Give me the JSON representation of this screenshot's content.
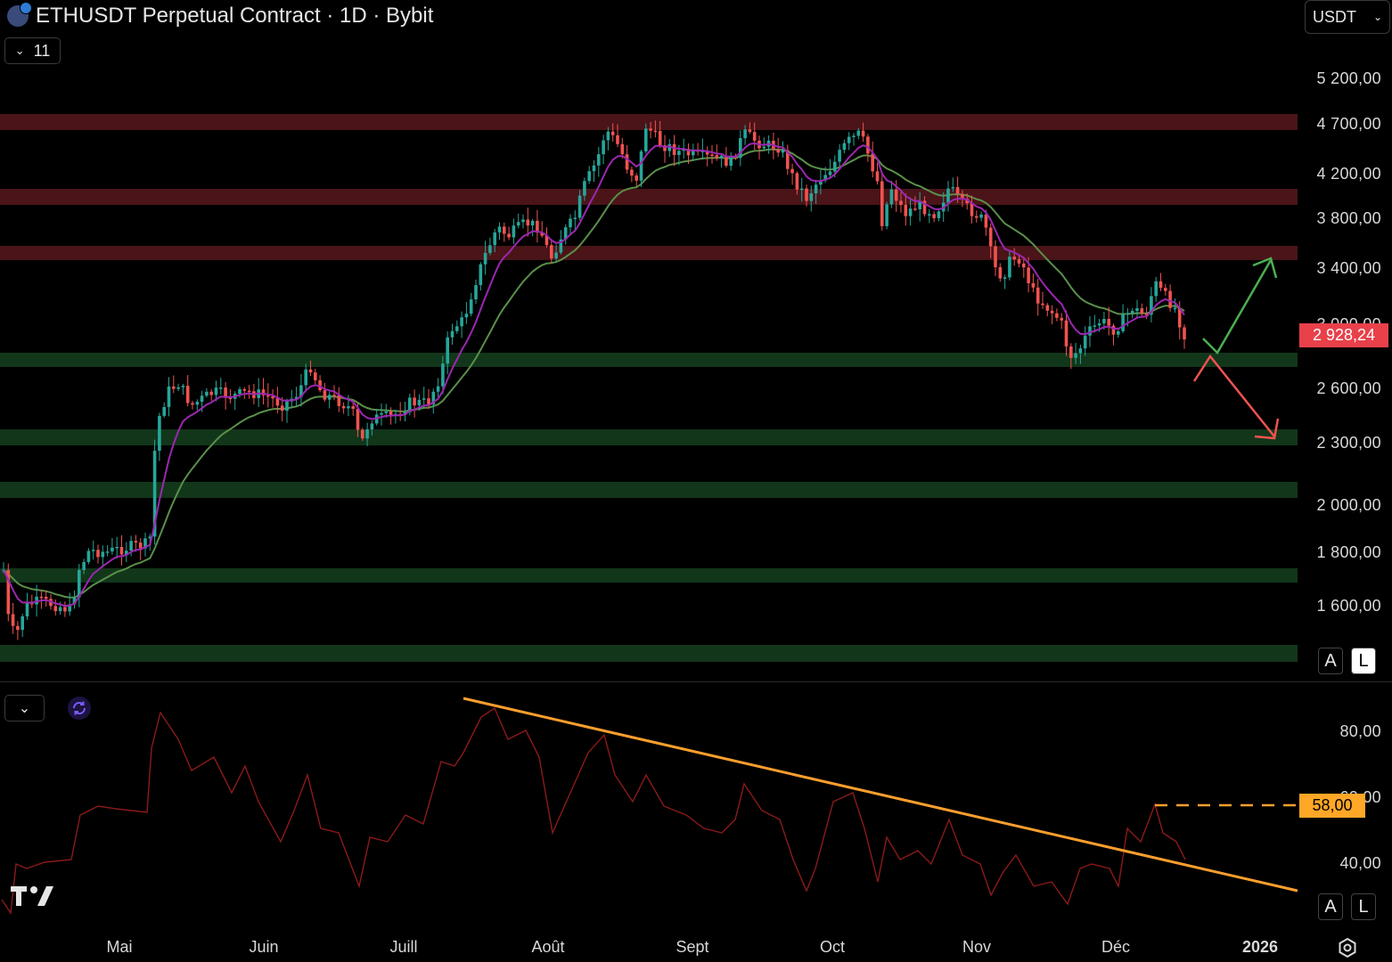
{
  "header": {
    "title": "ETHUSDT Perpetual Contract · 1D · Bybit",
    "symbol_icon": "ethereum-icon",
    "currency": "USDT",
    "indicators_count": "11"
  },
  "price_axis": {
    "ticks": [
      "5 200,00",
      "4 700,00",
      "4 200,00",
      "3 800,00",
      "3 400,00",
      "3 000,00",
      "2 600,00",
      "2 300,00",
      "2 000,00",
      "1 800,00",
      "1 600,00"
    ],
    "current_price": "2 928,24",
    "current_price_color": "#e8414a"
  },
  "rsi_axis": {
    "ticks": [
      "80,00",
      "60,00",
      "40,00"
    ],
    "current_value": "58,00",
    "badge_color": "#ffa726"
  },
  "time_axis": {
    "labels": [
      "Mai",
      "Juin",
      "Juill",
      "Août",
      "Sept",
      "Oct",
      "Nov",
      "Déc",
      "2026"
    ]
  },
  "scale_buttons": {
    "auto": "A",
    "log": "L"
  },
  "zones": {
    "resistance_color": "#4a1418",
    "support_color": "#12361a"
  },
  "colors": {
    "up": "#26a69a",
    "down": "#ef5350",
    "ema_fast": "#9c27b0",
    "ema_slow": "#5b8f4a",
    "rsi_line": "#8b1a1a",
    "trendline": "#ff9f2d",
    "scenario_up": "#4caf50",
    "scenario_down": "#ef5350"
  },
  "icons": {
    "tradingview_logo": "tradingview-logo",
    "settings": "gear-icon",
    "sync": "sync-icon",
    "chevron": "chevron-down-icon"
  }
}
